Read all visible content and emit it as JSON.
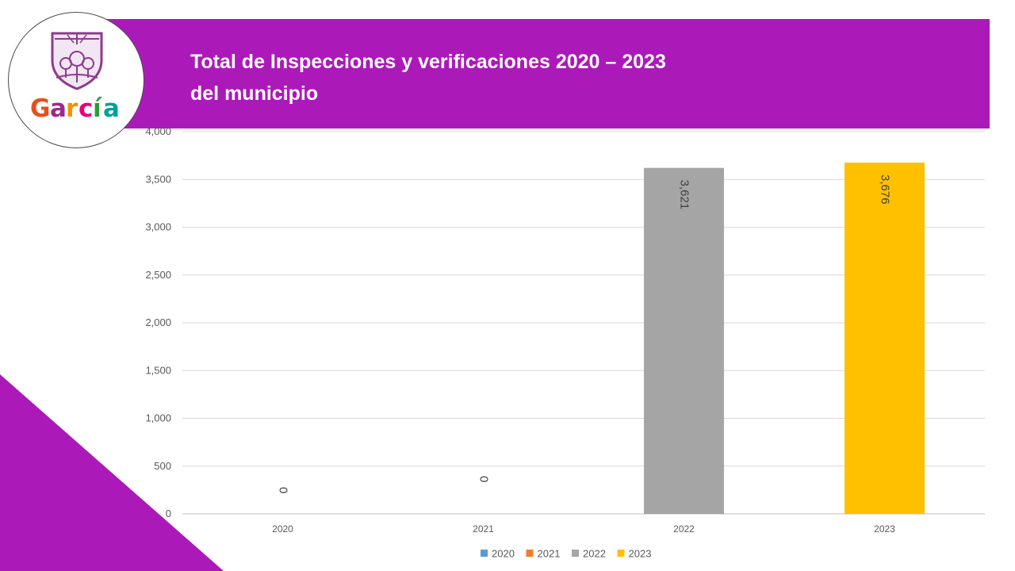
{
  "header": {
    "title_line1": "Total de Inspecciones y verificaciones 2020 – 2023",
    "title_line2": "del municipio",
    "banner_color": "#ab1ab8"
  },
  "logo": {
    "text": "García",
    "emblem_color": "#8e3a8e"
  },
  "chart_data": {
    "type": "bar",
    "categories": [
      "2020",
      "2021",
      "2022",
      "2023"
    ],
    "values": [
      0,
      0,
      3621,
      3676
    ],
    "data_labels": [
      "0",
      "0",
      "3,621",
      "3,676"
    ],
    "colors": [
      "#5b9bd5",
      "#ed7d31",
      "#a5a5a5",
      "#ffc000"
    ],
    "legend": [
      "2020",
      "2021",
      "2022",
      "2023"
    ],
    "legend_position": "bottom",
    "ylim": [
      0,
      4000
    ],
    "yticks": [
      0,
      500,
      1000,
      1500,
      2000,
      2500,
      3000,
      3500,
      4000
    ],
    "ytick_labels": [
      "0",
      "500",
      "1,000",
      "1,500",
      "2,000",
      "2,500",
      "3,000",
      "3,500",
      "4,000"
    ],
    "grid": true,
    "title": "",
    "xlabel": "",
    "ylabel": ""
  }
}
